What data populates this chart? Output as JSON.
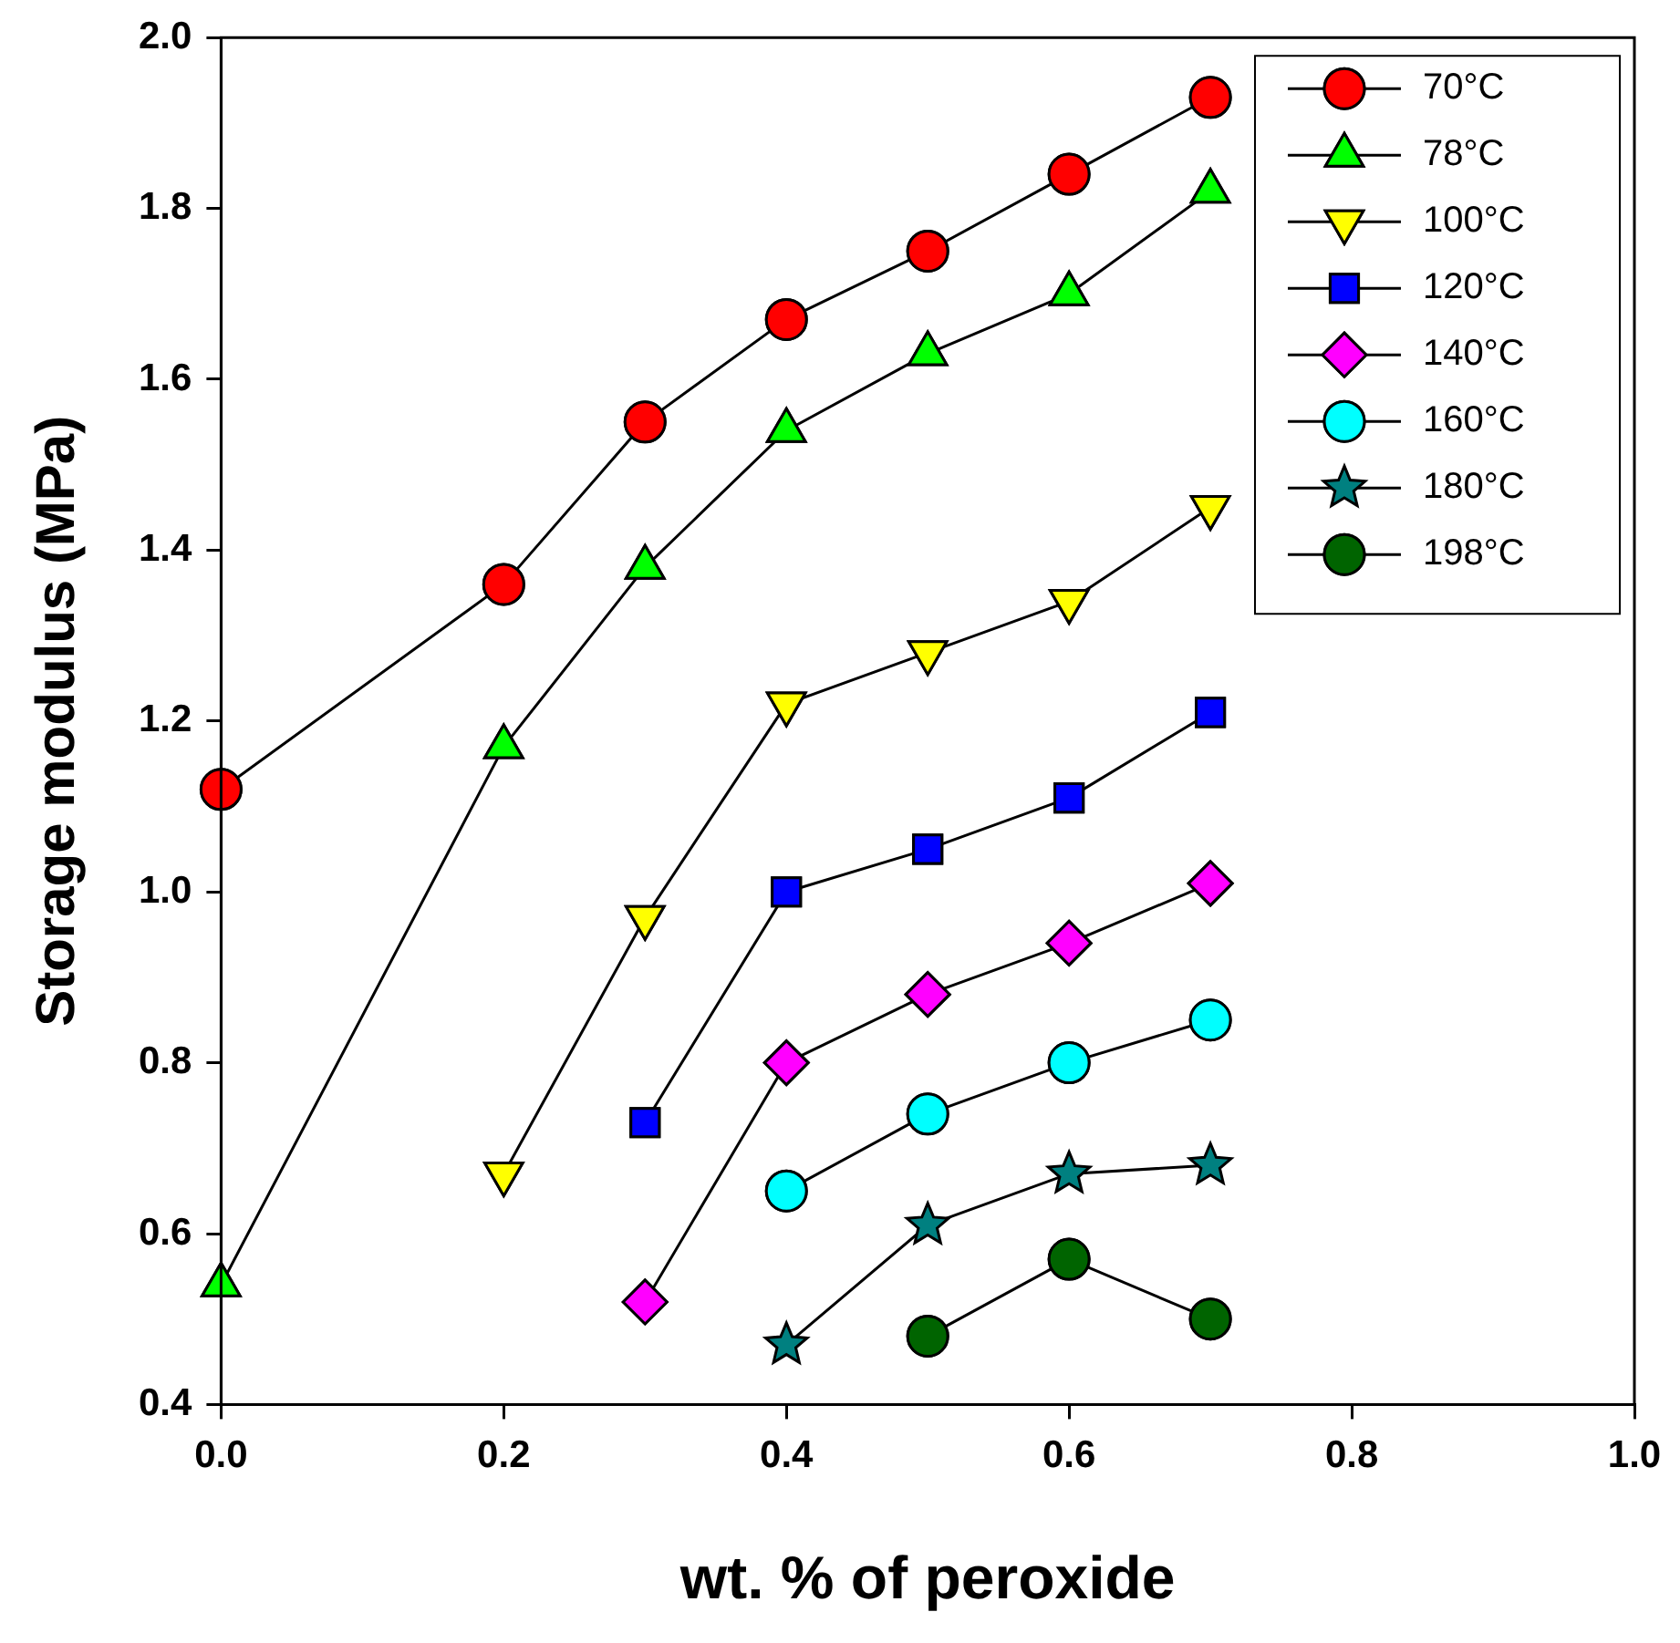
{
  "chart_data": {
    "type": "line",
    "xlabel": "wt. % of peroxide",
    "ylabel": "Storage modulus (MPa)",
    "xlim": [
      0,
      1
    ],
    "xticks": [
      {
        "value": 0,
        "label": "0.0"
      },
      0.2,
      0.4,
      0.6,
      0.8,
      {
        "value": 1,
        "label": "1.0"
      }
    ],
    "ylim": [
      0.4,
      2.0
    ],
    "yticks": [
      0.4,
      0.6,
      0.8,
      {
        "value": 1,
        "label": "1.0"
      },
      1.2,
      1.4,
      1.6,
      1.8,
      {
        "value": 2,
        "label": "2.0"
      }
    ],
    "grid": false,
    "legend": "top right",
    "line_style": "solid",
    "series": [
      {
        "name": "70°C",
        "color": "#ff0000",
        "marker": "circle",
        "x": [
          0,
          0.2,
          0.3,
          0.4,
          0.5,
          0.6,
          0.7
        ],
        "values": [
          1.12,
          1.36,
          1.55,
          1.67,
          1.75,
          1.84,
          1.93
        ]
      },
      {
        "name": "78°C",
        "color": "#00ff00",
        "marker": "triangle",
        "x": [
          0,
          0.2,
          0.3,
          0.4,
          0.5,
          0.6,
          0.7
        ],
        "values": [
          0.54,
          1.17,
          1.38,
          1.54,
          1.63,
          1.7,
          1.82
        ]
      },
      {
        "name": "100°C",
        "color": "#ffff00",
        "marker": "triangle-down",
        "x": [
          0.2,
          0.3,
          0.4,
          0.5,
          0.6,
          0.7
        ],
        "values": [
          0.67,
          0.97,
          1.22,
          1.28,
          1.34,
          1.45
        ]
      },
      {
        "name": "120°C",
        "color": "#0000ff",
        "marker": "square",
        "x": [
          0.3,
          0.4,
          0.5,
          0.6,
          0.7
        ],
        "values": [
          0.73,
          1.0,
          1.05,
          1.11,
          1.21
        ]
      },
      {
        "name": "140°C",
        "color": "#ff00ff",
        "marker": "diamond",
        "x": [
          0.3,
          0.4,
          0.5,
          0.6,
          0.7
        ],
        "values": [
          0.52,
          0.8,
          0.88,
          0.94,
          1.01
        ]
      },
      {
        "name": "160°C",
        "color": "#00ffff",
        "marker": "circle",
        "x": [
          0.4,
          0.5,
          0.6,
          0.7
        ],
        "values": [
          0.65,
          0.74,
          0.8,
          0.85
        ]
      },
      {
        "name": "180°C",
        "color": "#008080",
        "marker": "star",
        "x": [
          0.4,
          0.5,
          0.6,
          0.7
        ],
        "values": [
          0.47,
          0.61,
          0.67,
          0.68
        ]
      },
      {
        "name": "198°C",
        "color": "#006400",
        "marker": "circle",
        "x": [
          0.5,
          0.6,
          0.7
        ],
        "values": [
          0.48,
          0.57,
          0.5
        ]
      }
    ]
  }
}
